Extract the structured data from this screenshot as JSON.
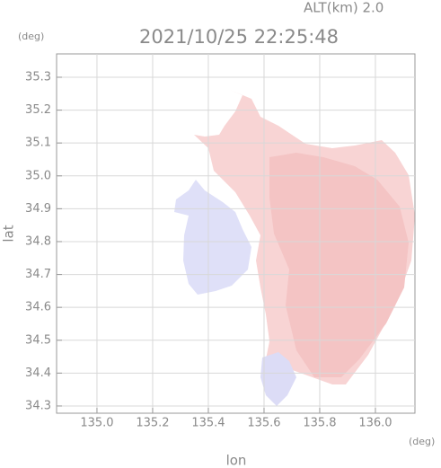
{
  "chart_data": {
    "type": "map",
    "title": "2021/10/25 22:25:48",
    "subtitle": "ALT(km) 2.0",
    "x_label": "lon",
    "y_label": "lat",
    "x_unit": "(deg)",
    "y_unit": "(deg)",
    "xlim": [
      134.855,
      136.142
    ],
    "ylim": [
      34.278,
      35.371
    ],
    "xticks": [
      {
        "value": 135,
        "label": "135.0"
      },
      135.2,
      135.4,
      135.6,
      135.8,
      {
        "value": 136,
        "label": "136.0"
      }
    ],
    "yticks": [
      34.3,
      34.4,
      34.5,
      34.6,
      34.7,
      34.8,
      34.9,
      {
        "value": 35,
        "label": "35.0"
      },
      35.1,
      35.2,
      35.3
    ],
    "grid": true
  }
}
